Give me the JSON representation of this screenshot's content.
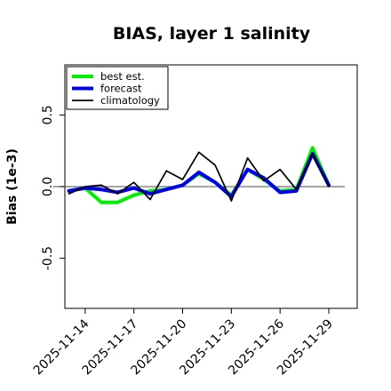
{
  "chart_data": {
    "type": "line",
    "title": "BIAS, layer 1 salinity",
    "xlabel": "",
    "ylabel": "Bias (1e-3)",
    "xlim": [
      "2025-11-12T18:00",
      "2025-11-30T18:00"
    ],
    "ylim": [
      -0.85,
      0.85
    ],
    "yticks": [
      -0.5,
      0.0,
      0.5
    ],
    "ytick_labels": [
      "-0.5",
      "0.0",
      "0.5"
    ],
    "xticks": [
      "2025-11-14",
      "2025-11-17",
      "2025-11-20",
      "2025-11-23",
      "2025-11-26",
      "2025-11-29"
    ],
    "highlighted_xtick": "2025-11-20",
    "highlight_color": "#228b22",
    "reference_line": 0.0,
    "legend_position": "top-left",
    "grid": false,
    "x": [
      "2025-11-13",
      "2025-11-14",
      "2025-11-15",
      "2025-11-16",
      "2025-11-17",
      "2025-11-18",
      "2025-11-19",
      "2025-11-20",
      "2025-11-21",
      "2025-11-22",
      "2025-11-23",
      "2025-11-24",
      "2025-11-25",
      "2025-11-26",
      "2025-11-27",
      "2025-11-28",
      "2025-11-29"
    ],
    "series": [
      {
        "name": "best est.",
        "color": "#00ee00",
        "values": [
          -0.03,
          -0.01,
          -0.11,
          -0.11,
          -0.06,
          -0.03,
          -0.02,
          0.01,
          0.09,
          0.03,
          -0.06,
          0.12,
          0.05,
          -0.03,
          -0.02,
          0.27,
          0.01
        ]
      },
      {
        "name": "forecast",
        "color": "#0000ee",
        "values": [
          -0.03,
          -0.01,
          -0.02,
          -0.04,
          -0.01,
          -0.05,
          -0.02,
          0.01,
          0.1,
          0.03,
          -0.07,
          0.12,
          0.06,
          -0.04,
          -0.03,
          0.23,
          0.01
        ]
      },
      {
        "name": "climatology",
        "color": "#000000",
        "values": [
          -0.05,
          0.0,
          0.01,
          -0.05,
          0.03,
          -0.09,
          0.11,
          0.05,
          0.24,
          0.15,
          -0.1,
          0.2,
          0.04,
          0.12,
          -0.02,
          0.23,
          0.0
        ]
      }
    ]
  }
}
